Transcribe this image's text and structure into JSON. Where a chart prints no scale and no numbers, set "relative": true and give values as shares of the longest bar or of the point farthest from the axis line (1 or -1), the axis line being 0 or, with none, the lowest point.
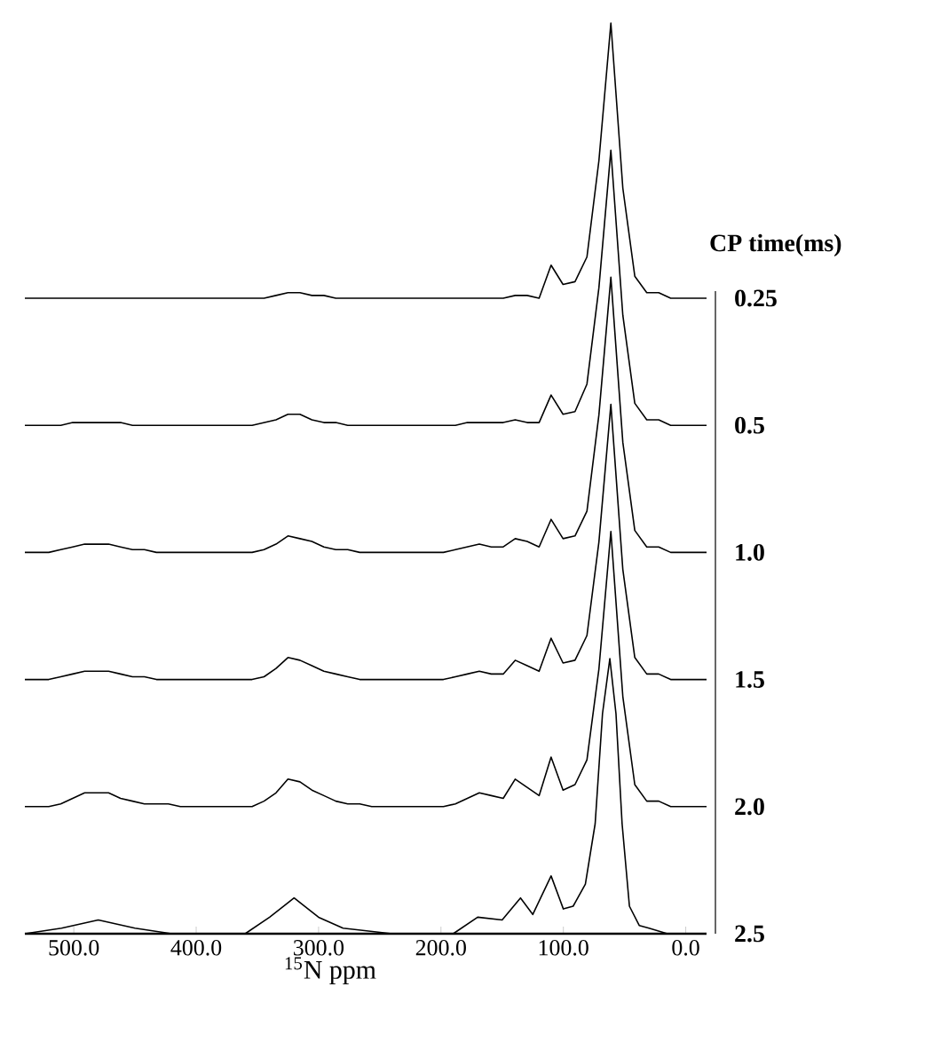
{
  "chart_data": [
    {
      "type": "line",
      "relative": true,
      "title": "CP time(ms)",
      "tick_labels": false,
      "categories": [
        null,
        null,
        null,
        null,
        null,
        null,
        null,
        null,
        null,
        null,
        null,
        null,
        null,
        null,
        null,
        null,
        null,
        null,
        null,
        null,
        null,
        null,
        null,
        null,
        null,
        null,
        null,
        null,
        null,
        null,
        null,
        null,
        null,
        null,
        null,
        null,
        null,
        null,
        null,
        null,
        null,
        null,
        null,
        null,
        null,
        null,
        null,
        null,
        null,
        null,
        null,
        null,
        null,
        null,
        null,
        null,
        null,
        null
      ],
      "series": [
        {
          "name": "0.25",
          "color": "#000000",
          "values": [
            0,
            0,
            0,
            0,
            0,
            0,
            0,
            0,
            0,
            0,
            0,
            0,
            0,
            0,
            0,
            0,
            0,
            0,
            0,
            0,
            0,
            0.01,
            0.02,
            0.02,
            0.01,
            0.01,
            0,
            0,
            0,
            0,
            0,
            0,
            0,
            0,
            0,
            0,
            0,
            0,
            0,
            0,
            0,
            0.01,
            0.01,
            0,
            0.12,
            0.05,
            0.06,
            0.15,
            0.5,
            1,
            0.4,
            0.08,
            0.02,
            0.02,
            0,
            0,
            0,
            0
          ]
        }
      ]
    },
    {
      "type": "line",
      "relative": true,
      "tick_labels": false,
      "categories": [
        null,
        null,
        null,
        null,
        null,
        null,
        null,
        null,
        null,
        null,
        null,
        null,
        null,
        null,
        null,
        null,
        null,
        null,
        null,
        null,
        null,
        null,
        null,
        null,
        null,
        null,
        null,
        null,
        null,
        null,
        null,
        null,
        null,
        null,
        null,
        null,
        null,
        null,
        null,
        null,
        null,
        null,
        null,
        null,
        null,
        null,
        null,
        null,
        null,
        null,
        null,
        null,
        null,
        null,
        null,
        null,
        null,
        null
      ],
      "series": [
        {
          "name": "0.5",
          "color": "#000000",
          "values": [
            0,
            0,
            0,
            0,
            0.01,
            0.01,
            0.01,
            0.01,
            0.01,
            0,
            0,
            0,
            0,
            0,
            0,
            0,
            0,
            0,
            0,
            0,
            0.01,
            0.02,
            0.04,
            0.04,
            0.02,
            0.01,
            0.01,
            0,
            0,
            0,
            0,
            0,
            0,
            0,
            0,
            0,
            0,
            0.01,
            0.01,
            0.01,
            0.01,
            0.02,
            0.01,
            0.01,
            0.11,
            0.04,
            0.05,
            0.15,
            0.5,
            1,
            0.4,
            0.08,
            0.02,
            0.02,
            0,
            0,
            0,
            0
          ]
        }
      ]
    },
    {
      "type": "line",
      "relative": true,
      "tick_labels": false,
      "categories": [
        null,
        null,
        null,
        null,
        null,
        null,
        null,
        null,
        null,
        null,
        null,
        null,
        null,
        null,
        null,
        null,
        null,
        null,
        null,
        null,
        null,
        null,
        null,
        null,
        null,
        null,
        null,
        null,
        null,
        null,
        null,
        null,
        null,
        null,
        null,
        null,
        null,
        null,
        null,
        null,
        null,
        null,
        null,
        null,
        null,
        null,
        null,
        null,
        null,
        null,
        null,
        null,
        null,
        null,
        null,
        null,
        null,
        null
      ],
      "series": [
        {
          "name": "1.0",
          "color": "#000000",
          "values": [
            0,
            0,
            0,
            0.01,
            0.02,
            0.03,
            0.03,
            0.03,
            0.02,
            0.01,
            0.01,
            0,
            0,
            0,
            0,
            0,
            0,
            0,
            0,
            0,
            0.01,
            0.03,
            0.06,
            0.05,
            0.04,
            0.02,
            0.01,
            0.01,
            0,
            0,
            0,
            0,
            0,
            0,
            0,
            0,
            0.01,
            0.02,
            0.03,
            0.02,
            0.02,
            0.05,
            0.04,
            0.02,
            0.12,
            0.05,
            0.06,
            0.15,
            0.5,
            1,
            0.4,
            0.08,
            0.02,
            0.02,
            0,
            0,
            0,
            0
          ]
        }
      ]
    },
    {
      "type": "line",
      "relative": true,
      "tick_labels": false,
      "categories": [
        null,
        null,
        null,
        null,
        null,
        null,
        null,
        null,
        null,
        null,
        null,
        null,
        null,
        null,
        null,
        null,
        null,
        null,
        null,
        null,
        null,
        null,
        null,
        null,
        null,
        null,
        null,
        null,
        null,
        null,
        null,
        null,
        null,
        null,
        null,
        null,
        null,
        null,
        null,
        null,
        null,
        null,
        null,
        null,
        null,
        null,
        null,
        null,
        null,
        null,
        null,
        null,
        null,
        null,
        null,
        null,
        null,
        null
      ],
      "series": [
        {
          "name": "1.5",
          "color": "#000000",
          "values": [
            0,
            0,
            0,
            0.01,
            0.02,
            0.03,
            0.03,
            0.03,
            0.02,
            0.01,
            0.01,
            0,
            0,
            0,
            0,
            0,
            0,
            0,
            0,
            0,
            0.01,
            0.04,
            0.08,
            0.07,
            0.05,
            0.03,
            0.02,
            0.01,
            0,
            0,
            0,
            0,
            0,
            0,
            0,
            0,
            0.01,
            0.02,
            0.03,
            0.02,
            0.02,
            0.07,
            0.05,
            0.03,
            0.15,
            0.06,
            0.07,
            0.16,
            0.5,
            1,
            0.4,
            0.08,
            0.02,
            0.02,
            0,
            0,
            0,
            0
          ]
        }
      ]
    },
    {
      "type": "line",
      "relative": true,
      "tick_labels": false,
      "categories": [
        null,
        null,
        null,
        null,
        null,
        null,
        null,
        null,
        null,
        null,
        null,
        null,
        null,
        null,
        null,
        null,
        null,
        null,
        null,
        null,
        null,
        null,
        null,
        null,
        null,
        null,
        null,
        null,
        null,
        null,
        null,
        null,
        null,
        null,
        null,
        null,
        null,
        null,
        null,
        null,
        null,
        null,
        null,
        null,
        null,
        null,
        null,
        null,
        null,
        null,
        null,
        null,
        null,
        null,
        null,
        null,
        null,
        null
      ],
      "series": [
        {
          "name": "2.0",
          "color": "#000000",
          "values": [
            0,
            0,
            0,
            0.01,
            0.03,
            0.05,
            0.05,
            0.05,
            0.03,
            0.02,
            0.01,
            0.01,
            0.01,
            0,
            0,
            0,
            0,
            0,
            0,
            0,
            0.02,
            0.05,
            0.1,
            0.09,
            0.06,
            0.04,
            0.02,
            0.01,
            0.01,
            0,
            0,
            0,
            0,
            0,
            0,
            0,
            0.01,
            0.03,
            0.05,
            0.04,
            0.03,
            0.1,
            0.07,
            0.04,
            0.18,
            0.06,
            0.08,
            0.17,
            0.5,
            1,
            0.4,
            0.08,
            0.02,
            0.02,
            0,
            0,
            0,
            0
          ]
        }
      ]
    },
    {
      "type": "line",
      "relative": true,
      "tick_labels": "x",
      "xlabel": "$^{15}$N ppm",
      "x": [
        540,
        510,
        480,
        450,
        420,
        360,
        340,
        320,
        300,
        280,
        240,
        190,
        170,
        150,
        135,
        125,
        110,
        100,
        92,
        82,
        74,
        68,
        62,
        57,
        52,
        46,
        38,
        30,
        15,
        0,
        -17
      ],
      "xlim": [
        540,
        -17
      ],
      "xticks": [
        {
          "value": 500,
          "label": "500.0"
        },
        {
          "value": 400,
          "label": "400.0"
        },
        {
          "value": 300,
          "label": "300.0"
        },
        {
          "value": 200,
          "label": "200.0"
        },
        {
          "value": 100,
          "label": "100.0"
        },
        {
          "value": 0,
          "label": "0.0"
        }
      ],
      "series": [
        {
          "name": "2.5",
          "color": "#000000",
          "values": [
            0,
            0.02,
            0.05,
            0.02,
            0,
            0,
            0.06,
            0.13,
            0.06,
            0.02,
            0,
            0,
            0.06,
            0.05,
            0.13,
            0.07,
            0.21,
            0.09,
            0.1,
            0.18,
            0.4,
            0.8,
            1,
            0.8,
            0.4,
            0.1,
            0.03,
            0.02,
            0,
            0,
            0
          ]
        }
      ]
    }
  ]
}
